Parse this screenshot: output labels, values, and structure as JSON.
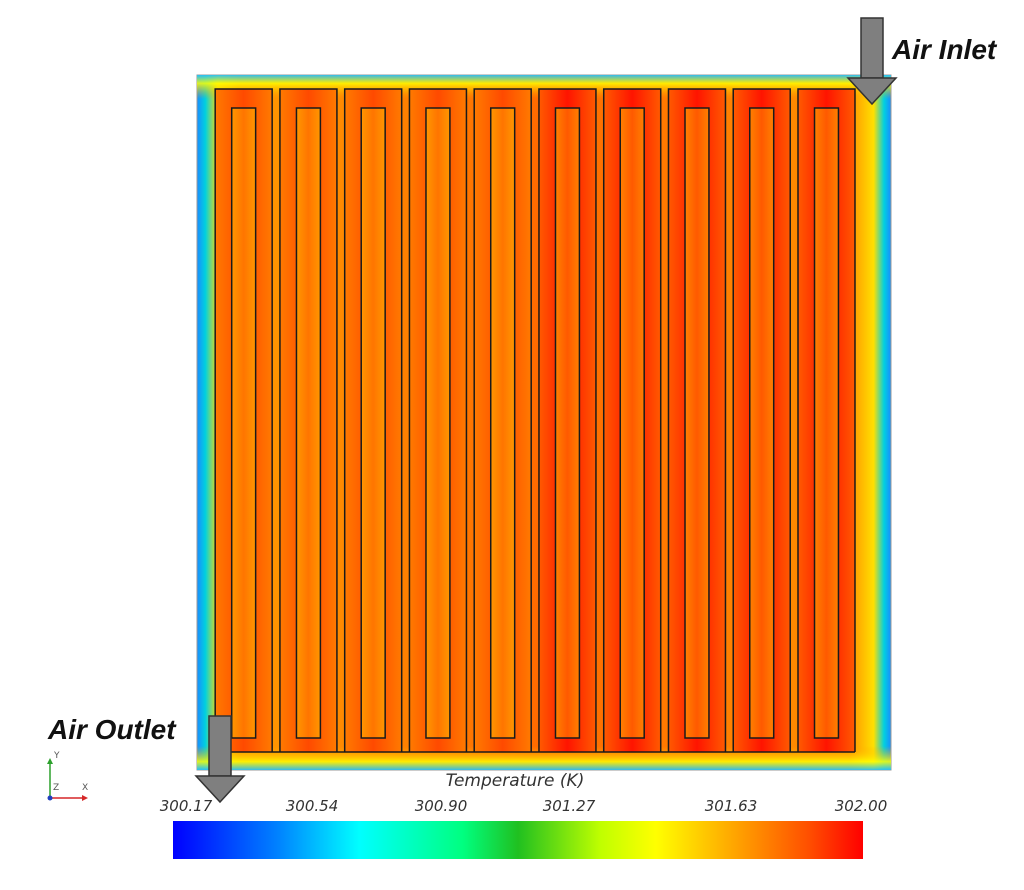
{
  "labels": {
    "inlet": "Air Inlet",
    "outlet": "Air Outlet"
  },
  "legend": {
    "title": "Temperature (K)",
    "ticks": [
      "300.17",
      "300.54",
      "300.90",
      "301.27",
      "301.63",
      "302.00"
    ],
    "colors": [
      "#0000ff",
      "#00a0ff",
      "#00ffff",
      "#00ff80",
      "#20c020",
      "#c0ff00",
      "#ffff00",
      "#ffa000",
      "#ff5000",
      "#ff0000"
    ]
  },
  "axes_triad": {
    "y": "Y",
    "z": "Z",
    "x": "X"
  },
  "colors": {
    "hot": "#ff1a00",
    "warm": "#ff5a00",
    "medium": "#ff9000",
    "edge": "#ffff00",
    "cool": "#00d0c0",
    "cold": "#1a8cff",
    "channel_outline": "#1a1a1a"
  },
  "channels": {
    "count": 10
  }
}
